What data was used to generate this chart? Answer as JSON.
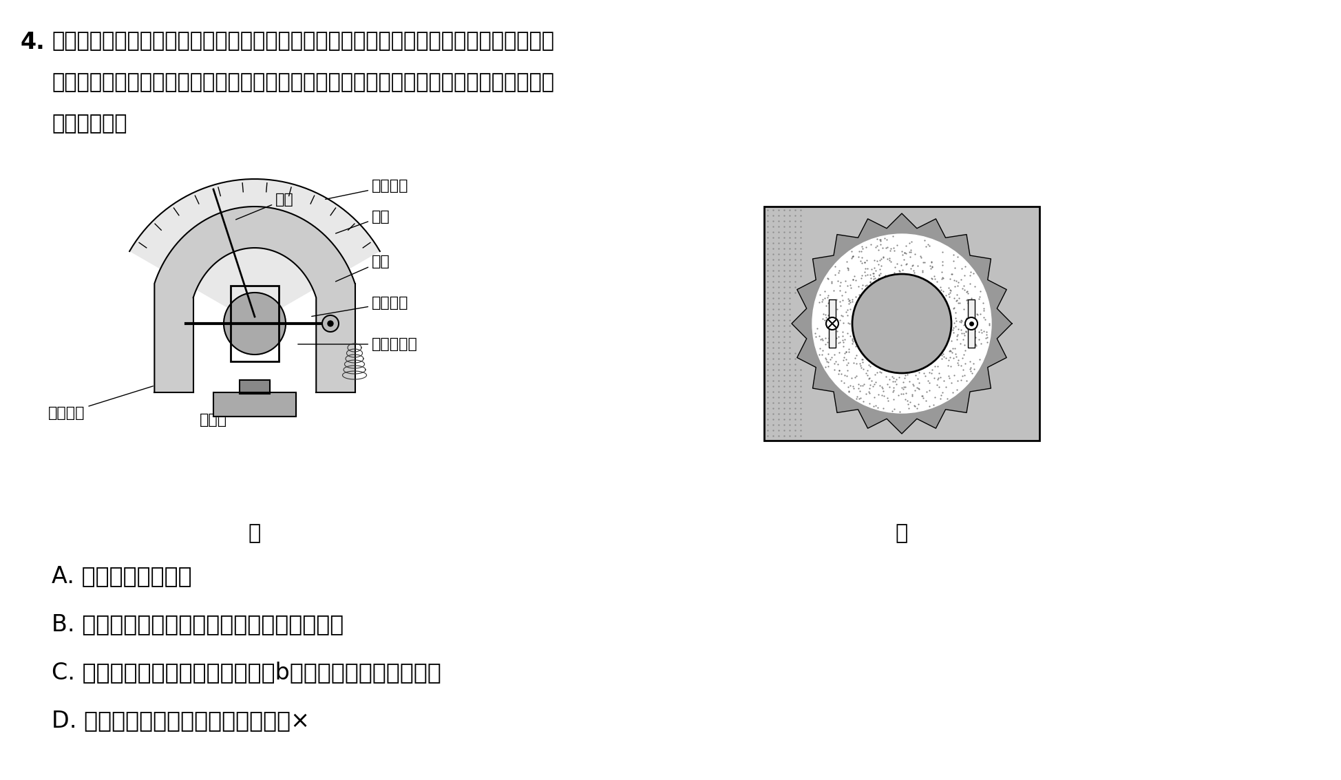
{
  "bg_color": "#ffffff",
  "text_color": "#000000",
  "question_number": "4.",
  "line1": "如图甲所示为磁电式电流表的结构示意图，磁电式电流表的优点是灵敏度很高，可以测出很",
  "line2": "弱的电流，蹄形磁铁和铁芯间的磁场如图乙所示。若线圈中通以如图乙所示的电流，则下列",
  "line3": "说法正确的是",
  "label_jia": "甲",
  "label_yi": "乙",
  "optionA": "A. 该磁场是匀强磁场",
  "optionB": "B. 线圈转动时，螺旋弹簧被扭动阻碍线圈转动",
  "optionC": "C. 当线圈转到图乙所示的位置时，b端受到的安培力方向向上",
  "optionD": "D. 线圈转动时所受安培力的方向不变×",
  "fontsize_main": 22,
  "fontsize_option": 24,
  "fontsize_annotation": 16
}
